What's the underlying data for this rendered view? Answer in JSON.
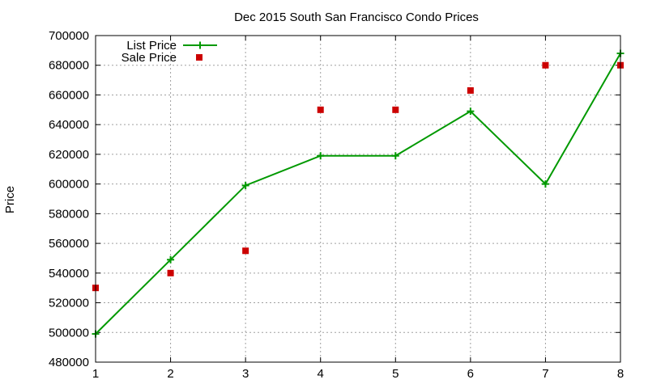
{
  "chart_data": {
    "type": "line",
    "title": "Dec 2015 South San Francisco Condo Prices",
    "xlabel": "",
    "ylabel": "Price",
    "x": [
      1,
      2,
      3,
      4,
      5,
      6,
      7,
      8
    ],
    "xlim": [
      1,
      8
    ],
    "ylim": [
      480000,
      700000
    ],
    "xticks": [
      "1",
      "2",
      "3",
      "4",
      "5",
      "6",
      "7",
      "8"
    ],
    "yticks": [
      "480000",
      "500000",
      "520000",
      "540000",
      "560000",
      "580000",
      "600000",
      "620000",
      "640000",
      "660000",
      "680000",
      "700000"
    ],
    "grid": true,
    "legend_position": "top-left",
    "series": [
      {
        "name": "List Price",
        "style": "line-with-plus-markers",
        "color": "#009900",
        "values": [
          499000,
          549000,
          599000,
          619000,
          619000,
          649000,
          600000,
          688000
        ]
      },
      {
        "name": "Sale Price",
        "style": "square-markers",
        "color": "#cc0000",
        "values": [
          530000,
          540000,
          555000,
          650000,
          650000,
          663000,
          680000,
          680000
        ]
      }
    ]
  }
}
